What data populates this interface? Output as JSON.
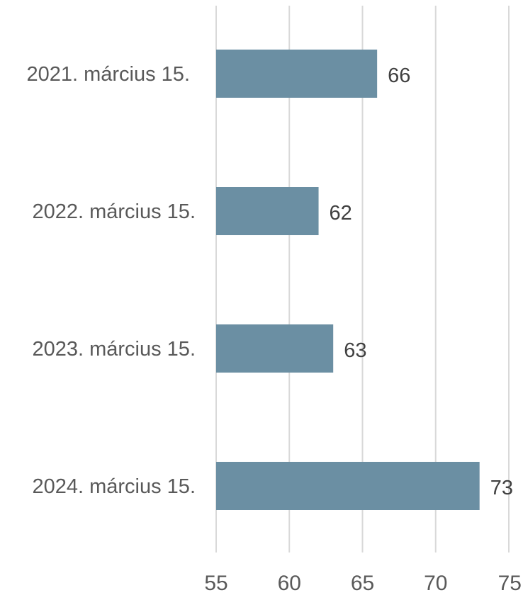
{
  "chart_data": {
    "type": "bar",
    "orientation": "horizontal",
    "categories": [
      "2021. március 15.",
      "2022. március 15.",
      "2023. március 15.",
      "2024. március 15."
    ],
    "values": [
      66,
      62,
      63,
      73
    ],
    "data_labels": [
      "66",
      "62",
      "63",
      "73"
    ],
    "xlim": [
      55,
      75
    ],
    "xticks": [
      55,
      60,
      65,
      70,
      75
    ],
    "xtick_labels": [
      "55",
      "60",
      "65",
      "70",
      "75"
    ],
    "grid": true,
    "grid_axis": "x",
    "legend": "none",
    "title": "",
    "xlabel": "",
    "ylabel": "",
    "colors": {
      "bar": "#6b8fa3",
      "grid": "#d9d9d9",
      "category_text": "#595959",
      "value_text": "#404040",
      "tick_text": "#595959"
    }
  }
}
